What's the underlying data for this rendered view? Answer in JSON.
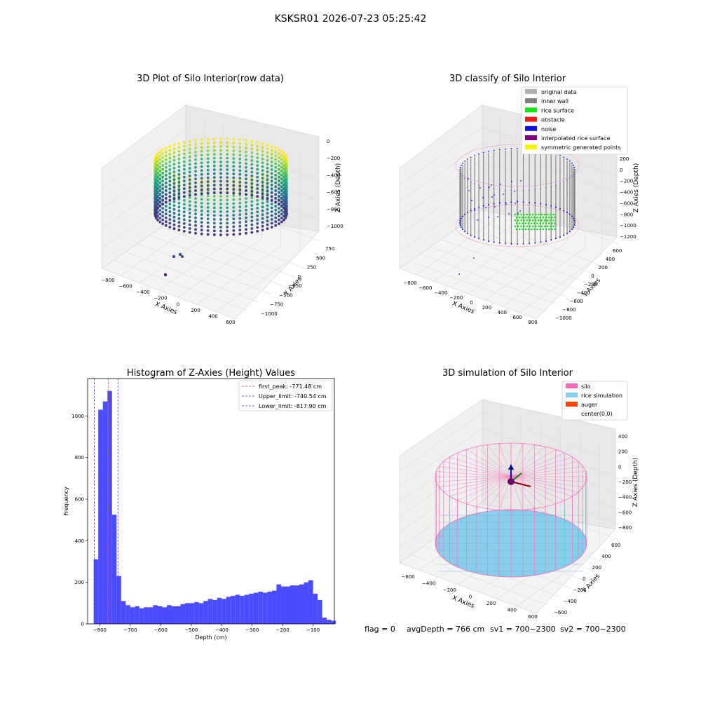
{
  "figure": {
    "suptitle": "KSKSR01 2026-07-23 05:25:42",
    "footer": {
      "flag": "flag = 0",
      "avg": "avgDepth = 766 cm",
      "sv1": "sv1 = 700~2300",
      "sv2": "sv2 = 700~2300"
    }
  },
  "colors": {
    "histogram_bar": "#4b4bff",
    "first_peak_line": "#e23c3c",
    "limit_line": "#3232d6",
    "original": "#b0b0b0",
    "inner_wall": "#7f7f7f",
    "rice_surface": "#16e016",
    "obstacle": "#ee1b1b",
    "noise": "#1010e0",
    "interpolated": "#7f007f",
    "symmetric": "#f4f400",
    "silo_wire": "#ff69b4",
    "rice_sim": "#87ceeb",
    "auger": "#ff4500"
  },
  "chart_data": [
    {
      "type": "scatter",
      "projection": "3d",
      "title": "3D Plot of Silo Interior(row data)",
      "xlabel": "X Axies",
      "ylabel": "Y Axies",
      "zlabel": "Z Axies (Depth)",
      "x_ticks": [
        "−800",
        "−600",
        "−400",
        "−200",
        "0",
        "200",
        "400",
        "600"
      ],
      "y_ticks": [
        "750",
        "500",
        "250",
        "0",
        "−250",
        "−500",
        "−750",
        "−1000"
      ],
      "z_ticks": [
        "0",
        "−200",
        "−400",
        "−600",
        "−800",
        "−1000"
      ],
      "colormap": "viridis"
    },
    {
      "type": "scatter",
      "projection": "3d",
      "title": "3D classify of Silo Interior",
      "xlabel": "X Axies",
      "ylabel": "Y Axies",
      "zlabel": "Z Axies (Depth)",
      "x_ticks": [
        "−800",
        "−600",
        "−400",
        "−200",
        "0",
        "200",
        "400",
        "600",
        "800"
      ],
      "y_ticks": [
        "600",
        "400",
        "200",
        "0",
        "−200",
        "−400",
        "−600",
        "−800",
        "−1000"
      ],
      "z_ticks": [
        "200",
        "0",
        "−200",
        "−400",
        "−600",
        "−800",
        "−1000",
        "−1200"
      ],
      "legend": [
        "original data",
        "inner wall",
        "rice surface",
        "obstacle",
        "noise",
        "interpolated rice surface",
        "symmetric generated points"
      ],
      "legend_position": "top-right"
    },
    {
      "type": "bar",
      "title": "Histogram of Z-Axies (Height) Values",
      "xlabel": "Depth (cm)",
      "ylabel": "Frequency",
      "x_tick_labels": [
        "−800",
        "−700",
        "−600",
        "−500",
        "−400",
        "−300",
        "−200",
        "−100"
      ],
      "y_tick_labels": [
        "0",
        "200",
        "400",
        "600",
        "800",
        "1000"
      ],
      "xlim": [
        -840,
        -30
      ],
      "ylim": [
        0,
        1180
      ],
      "bin_start": -820,
      "bin_width": 15,
      "values": [
        310,
        1030,
        1070,
        1120,
        525,
        230,
        110,
        90,
        80,
        85,
        75,
        80,
        80,
        90,
        85,
        80,
        90,
        85,
        85,
        95,
        100,
        100,
        105,
        100,
        110,
        120,
        115,
        125,
        120,
        130,
        135,
        140,
        135,
        140,
        145,
        150,
        155,
        150,
        155,
        160,
        190,
        180,
        180,
        185,
        185,
        190,
        200,
        210,
        145,
        115,
        30,
        20,
        15
      ],
      "vlines": [
        {
          "label": "first_peak: -771.48 cm",
          "x": -771.48,
          "color": "red"
        },
        {
          "label": "Upper_limit: -740.54 cm",
          "x": -740.54,
          "color": "blue"
        },
        {
          "label": "Lower_limit: -817.90 cm",
          "x": -817.9,
          "color": "blue"
        }
      ],
      "legend_position": "top-right"
    },
    {
      "type": "scatter",
      "projection": "3d",
      "title": "3D simulation of Silo Interior",
      "xlabel": "X Axies",
      "ylabel": "Y Axies",
      "zlabel": "Z Axies (Depth)",
      "x_ticks": [
        "−600",
        "−400",
        "−200",
        "0",
        "200",
        "400",
        "600"
      ],
      "y_ticks": [
        "600",
        "400",
        "200",
        "0",
        "−200",
        "−400",
        "−600"
      ],
      "z_ticks": [
        "400",
        "200",
        "0",
        "−200",
        "−400",
        "−600",
        "−800"
      ],
      "legend": [
        "silo",
        "rice simulation",
        "auger",
        "center(0,0)"
      ],
      "legend_position": "top-right"
    }
  ]
}
